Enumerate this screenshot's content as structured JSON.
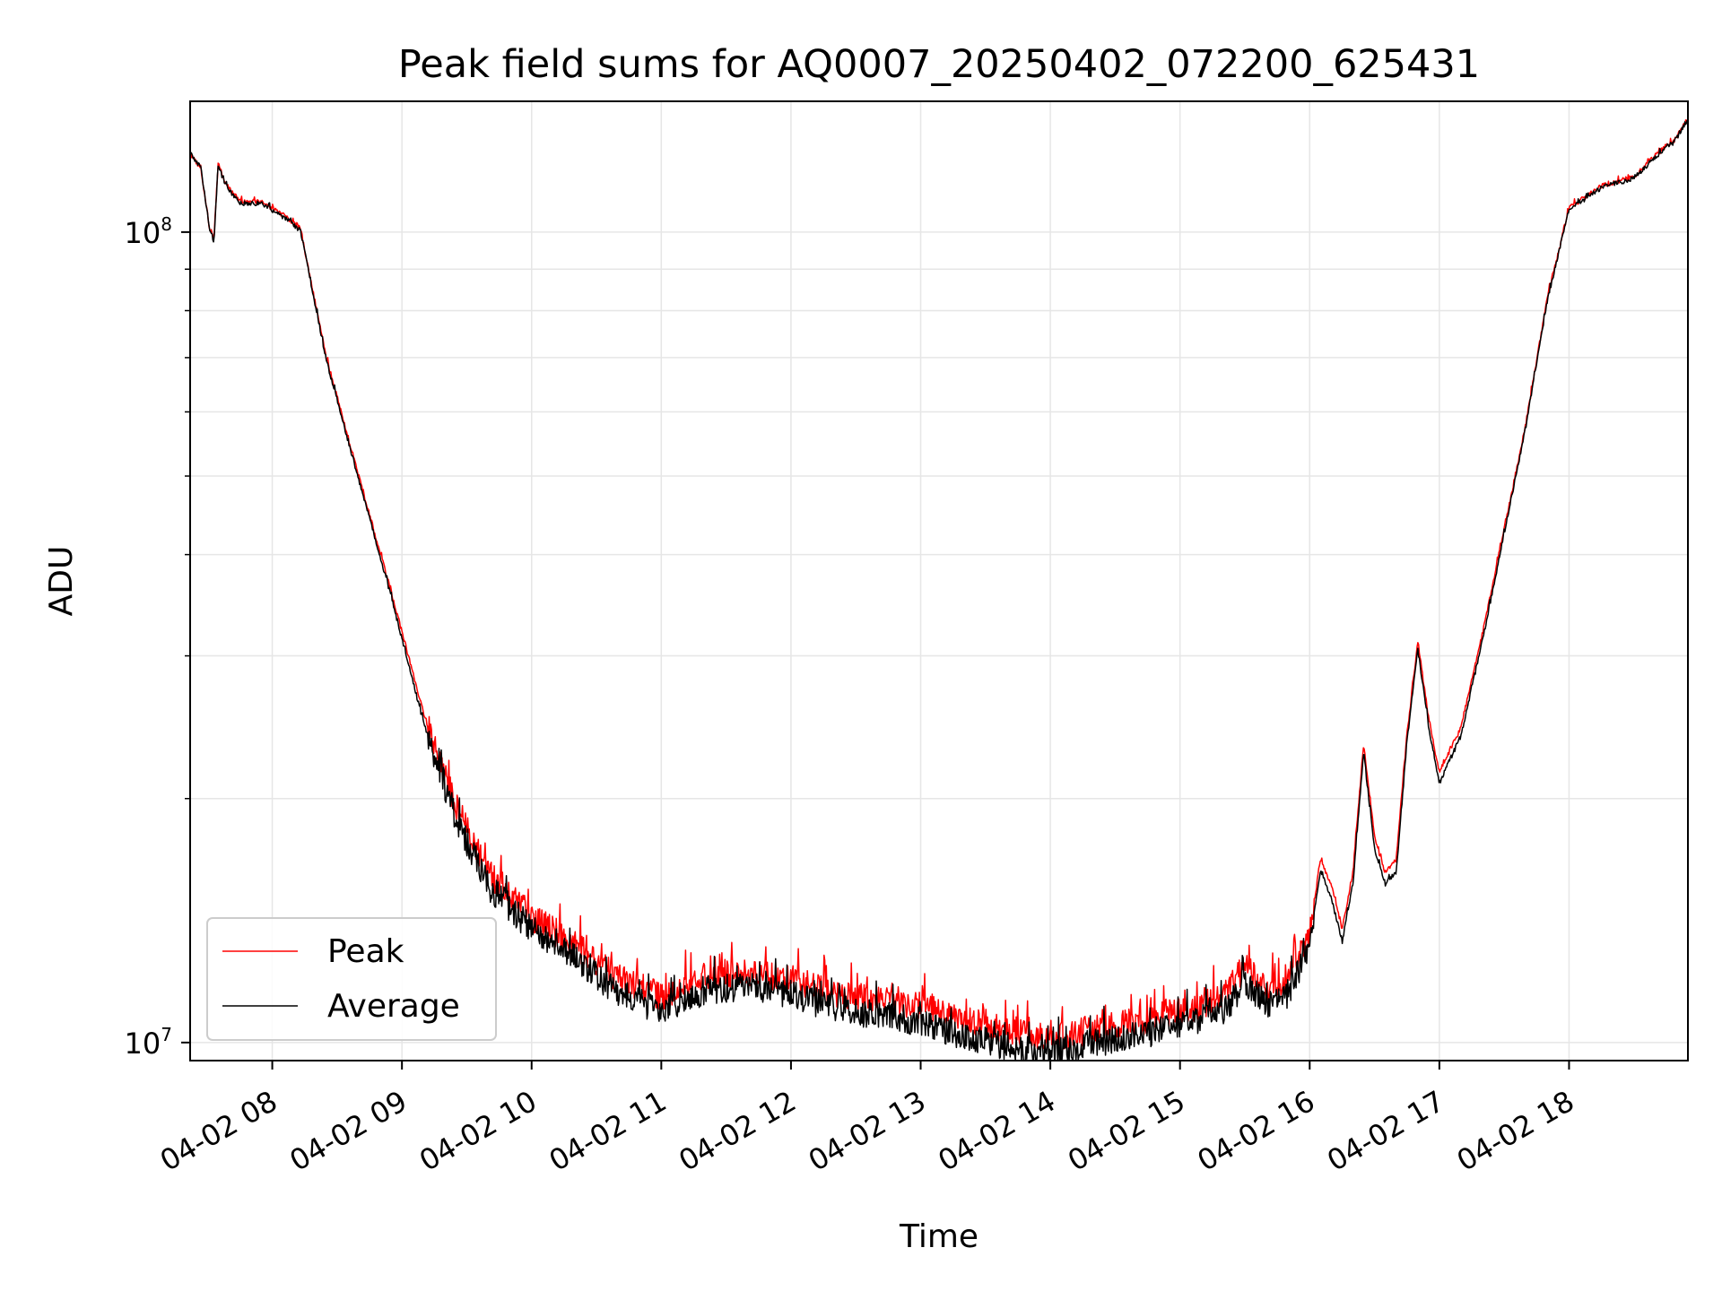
{
  "chart_data": {
    "type": "line",
    "title": "Peak field sums for AQ0007_20250402_072200_625431",
    "xlabel": "Time",
    "ylabel": "ADU",
    "yscale": "log",
    "ylim": [
      9500000,
      145000000
    ],
    "xlim": [
      "04-02 07:22",
      "04-02 18:55"
    ],
    "grid": true,
    "legend_position": "lower-left",
    "x_ticks": [
      {
        "t": "04-02 08:00",
        "label": "04-02 08"
      },
      {
        "t": "04-02 09:00",
        "label": "04-02 09"
      },
      {
        "t": "04-02 10:00",
        "label": "04-02 10"
      },
      {
        "t": "04-02 11:00",
        "label": "04-02 11"
      },
      {
        "t": "04-02 12:00",
        "label": "04-02 12"
      },
      {
        "t": "04-02 13:00",
        "label": "04-02 13"
      },
      {
        "t": "04-02 14:00",
        "label": "04-02 14"
      },
      {
        "t": "04-02 15:00",
        "label": "04-02 15"
      },
      {
        "t": "04-02 16:00",
        "label": "04-02 16"
      },
      {
        "t": "04-02 17:00",
        "label": "04-02 17"
      },
      {
        "t": "04-02 18:00",
        "label": "04-02 18"
      }
    ],
    "y_ticks": [
      {
        "value": 10000000,
        "base": "10",
        "exp": "7"
      },
      {
        "value": 100000000,
        "base": "10",
        "exp": "8"
      }
    ],
    "series": [
      {
        "name": "Peak",
        "color": "#ff0000",
        "x": [
          "04-02 07:22",
          "04-02 07:27",
          "04-02 07:31",
          "04-02 07:33",
          "04-02 07:35",
          "04-02 07:38",
          "04-02 07:45",
          "04-02 07:55",
          "04-02 08:05",
          "04-02 08:13",
          "04-02 08:25",
          "04-02 08:40",
          "04-02 08:55",
          "04-02 09:10",
          "04-02 09:25",
          "04-02 09:40",
          "04-02 10:00",
          "04-02 10:20",
          "04-02 10:40",
          "04-02 11:00",
          "04-02 11:20",
          "04-02 11:40",
          "04-02 12:00",
          "04-02 12:20",
          "04-02 12:40",
          "04-02 13:00",
          "04-02 13:20",
          "04-02 13:40",
          "04-02 14:00",
          "04-02 14:20",
          "04-02 14:40",
          "04-02 15:00",
          "04-02 15:20",
          "04-02 15:30",
          "04-02 15:40",
          "04-02 15:50",
          "04-02 16:00",
          "04-02 16:05",
          "04-02 16:10",
          "04-02 16:15",
          "04-02 16:20",
          "04-02 16:25",
          "04-02 16:30",
          "04-02 16:35",
          "04-02 16:40",
          "04-02 16:45",
          "04-02 16:50",
          "04-02 16:55",
          "04-02 17:00",
          "04-02 17:10",
          "04-02 17:20",
          "04-02 17:30",
          "04-02 17:40",
          "04-02 17:50",
          "04-02 18:00",
          "04-02 18:15",
          "04-02 18:30",
          "04-02 18:45",
          "04-02 18:48",
          "04-02 18:55"
        ],
        "y": [
          125000000,
          120000000,
          101000000,
          98000000,
          122000000,
          115000000,
          109000000,
          109000000,
          105000000,
          101000000,
          70000000,
          50000000,
          36000000,
          25500000,
          19600000,
          16200000,
          14300000,
          13200000,
          12000000,
          11400000,
          12100000,
          12200000,
          12000000,
          11500000,
          11300000,
          11100000,
          10700000,
          10400000,
          10100000,
          10400000,
          10600000,
          10900000,
          11400000,
          12400000,
          11600000,
          12000000,
          13700000,
          16800000,
          15600000,
          13800000,
          16200000,
          23400000,
          17900000,
          16200000,
          16800000,
          24000000,
          31200000,
          25200000,
          21500000,
          24500000,
          32000000,
          43000000,
          58000000,
          83000000,
          107000000,
          114000000,
          117000000,
          128000000,
          129000000,
          138000000
        ]
      },
      {
        "name": "Average",
        "color": "#000000",
        "x": [
          "04-02 07:22",
          "04-02 07:27",
          "04-02 07:31",
          "04-02 07:33",
          "04-02 07:35",
          "04-02 07:38",
          "04-02 07:45",
          "04-02 07:55",
          "04-02 08:05",
          "04-02 08:13",
          "04-02 08:25",
          "04-02 08:40",
          "04-02 08:55",
          "04-02 09:10",
          "04-02 09:25",
          "04-02 09:40",
          "04-02 10:00",
          "04-02 10:20",
          "04-02 10:40",
          "04-02 11:00",
          "04-02 11:20",
          "04-02 11:40",
          "04-02 12:00",
          "04-02 12:20",
          "04-02 12:40",
          "04-02 13:00",
          "04-02 13:20",
          "04-02 13:40",
          "04-02 14:00",
          "04-02 14:20",
          "04-02 14:40",
          "04-02 15:00",
          "04-02 15:20",
          "04-02 15:30",
          "04-02 15:40",
          "04-02 15:50",
          "04-02 16:00",
          "04-02 16:05",
          "04-02 16:10",
          "04-02 16:15",
          "04-02 16:20",
          "04-02 16:25",
          "04-02 16:30",
          "04-02 16:35",
          "04-02 16:40",
          "04-02 16:45",
          "04-02 16:50",
          "04-02 16:55",
          "04-02 17:00",
          "04-02 17:10",
          "04-02 17:20",
          "04-02 17:30",
          "04-02 17:40",
          "04-02 17:50",
          "04-02 18:00",
          "04-02 18:15",
          "04-02 18:30",
          "04-02 18:45",
          "04-02 18:48",
          "04-02 18:55"
        ],
        "y": [
          125000000,
          120000000,
          101000000,
          97500000,
          121000000,
          114500000,
          108500000,
          108500000,
          104500000,
          100500000,
          69500000,
          49500000,
          35500000,
          24800000,
          18900000,
          15600000,
          13800000,
          12700000,
          11500000,
          10900000,
          11600000,
          11700000,
          11500000,
          11000000,
          10800000,
          10600000,
          10200000,
          9900000,
          9700000,
          10000000,
          10200000,
          10500000,
          10900000,
          11900000,
          11100000,
          11500000,
          13200000,
          16300000,
          15100000,
          13300000,
          15700000,
          22800000,
          17300000,
          15700000,
          16200000,
          23500000,
          30600000,
          24600000,
          20900000,
          23900000,
          31400000,
          42500000,
          57500000,
          82500000,
          106500000,
          113500000,
          116500000,
          127500000,
          128500000,
          137500000
        ]
      }
    ]
  }
}
